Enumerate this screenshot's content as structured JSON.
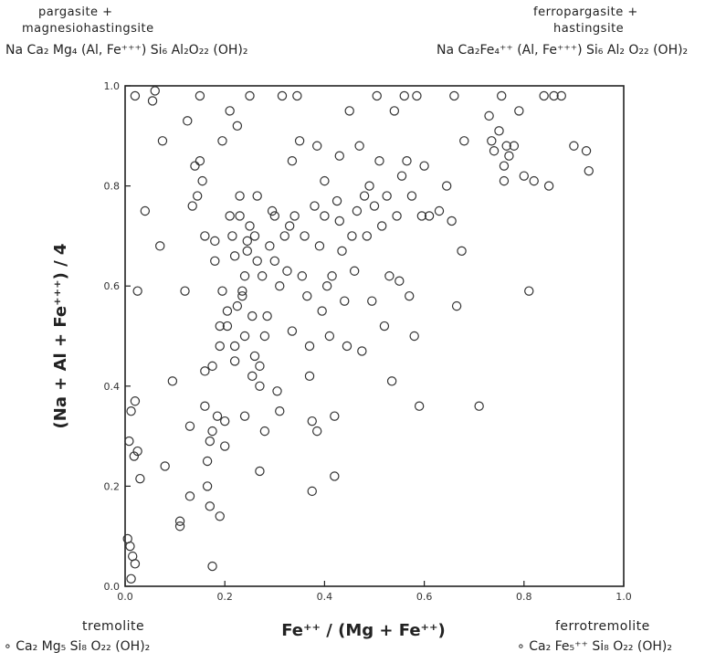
{
  "corner_labels": {
    "top_left": {
      "name_line1": "pargasite +",
      "name_line2": "magnesiohastingsite",
      "formula": "Na Ca₂ Mg₄ (Al, Fe⁺⁺⁺) Si₆ Al₂O₂₂ (OH)₂"
    },
    "top_right": {
      "name_line1": "ferropargasite +",
      "name_line2": "hastingsite",
      "formula": "Na Ca₂Fe₄⁺⁺ (Al, Fe⁺⁺⁺) Si₆ Al₂ O₂₂ (OH)₂"
    },
    "bottom_left": {
      "name": "tremolite",
      "formula": "∘ Ca₂ Mg₅ Si₈ O₂₂ (OH)₂"
    },
    "bottom_right": {
      "name": "ferrotremolite",
      "formula": "∘ Ca₂ Fe₅⁺⁺ Si₈ O₂₂ (OH)₂"
    }
  },
  "chart_data": {
    "type": "scatter",
    "xlabel": "Fe⁺⁺ / (Mg + Fe⁺⁺)",
    "ylabel": "(Na + Al + Fe⁺⁺⁺) / 4",
    "xlim": [
      0.0,
      1.0
    ],
    "ylim": [
      0.0,
      1.0
    ],
    "x_ticks": [
      "0.0",
      "0.2",
      "0.4",
      "0.6",
      "0.8",
      "1.0"
    ],
    "y_ticks": [
      "0.0",
      "0.2",
      "0.4",
      "0.6",
      "0.8",
      "1.0"
    ],
    "grid": false,
    "marker": "open-circle",
    "points": [
      [
        0.005,
        0.095
      ],
      [
        0.01,
        0.08
      ],
      [
        0.015,
        0.06
      ],
      [
        0.02,
        0.045
      ],
      [
        0.012,
        0.015
      ],
      [
        0.008,
        0.29
      ],
      [
        0.012,
        0.35
      ],
      [
        0.02,
        0.37
      ],
      [
        0.025,
        0.27
      ],
      [
        0.018,
        0.26
      ],
      [
        0.03,
        0.215
      ],
      [
        0.025,
        0.59
      ],
      [
        0.02,
        0.98
      ],
      [
        0.04,
        0.75
      ],
      [
        0.055,
        0.97
      ],
      [
        0.06,
        0.99
      ],
      [
        0.07,
        0.68
      ],
      [
        0.075,
        0.89
      ],
      [
        0.08,
        0.24
      ],
      [
        0.095,
        0.41
      ],
      [
        0.11,
        0.13
      ],
      [
        0.11,
        0.12
      ],
      [
        0.12,
        0.59
      ],
      [
        0.125,
        0.93
      ],
      [
        0.13,
        0.18
      ],
      [
        0.13,
        0.32
      ],
      [
        0.135,
        0.76
      ],
      [
        0.14,
        0.84
      ],
      [
        0.145,
        0.78
      ],
      [
        0.15,
        0.85
      ],
      [
        0.15,
        0.98
      ],
      [
        0.155,
        0.81
      ],
      [
        0.16,
        0.43
      ],
      [
        0.16,
        0.36
      ],
      [
        0.16,
        0.7
      ],
      [
        0.165,
        0.25
      ],
      [
        0.165,
        0.2
      ],
      [
        0.17,
        0.16
      ],
      [
        0.17,
        0.29
      ],
      [
        0.175,
        0.04
      ],
      [
        0.175,
        0.31
      ],
      [
        0.175,
        0.44
      ],
      [
        0.18,
        0.69
      ],
      [
        0.18,
        0.65
      ],
      [
        0.185,
        0.34
      ],
      [
        0.19,
        0.48
      ],
      [
        0.19,
        0.52
      ],
      [
        0.19,
        0.14
      ],
      [
        0.195,
        0.59
      ],
      [
        0.195,
        0.89
      ],
      [
        0.2,
        0.28
      ],
      [
        0.2,
        0.33
      ],
      [
        0.205,
        0.52
      ],
      [
        0.205,
        0.55
      ],
      [
        0.21,
        0.74
      ],
      [
        0.21,
        0.95
      ],
      [
        0.215,
        0.7
      ],
      [
        0.22,
        0.45
      ],
      [
        0.22,
        0.48
      ],
      [
        0.22,
        0.66
      ],
      [
        0.225,
        0.56
      ],
      [
        0.225,
        0.92
      ],
      [
        0.23,
        0.78
      ],
      [
        0.23,
        0.74
      ],
      [
        0.235,
        0.58
      ],
      [
        0.235,
        0.59
      ],
      [
        0.24,
        0.34
      ],
      [
        0.24,
        0.5
      ],
      [
        0.24,
        0.62
      ],
      [
        0.245,
        0.67
      ],
      [
        0.245,
        0.69
      ],
      [
        0.25,
        0.72
      ],
      [
        0.25,
        0.98
      ],
      [
        0.255,
        0.42
      ],
      [
        0.255,
        0.54
      ],
      [
        0.26,
        0.46
      ],
      [
        0.26,
        0.7
      ],
      [
        0.265,
        0.65
      ],
      [
        0.265,
        0.78
      ],
      [
        0.27,
        0.4
      ],
      [
        0.27,
        0.44
      ],
      [
        0.27,
        0.23
      ],
      [
        0.275,
        0.62
      ],
      [
        0.28,
        0.31
      ],
      [
        0.28,
        0.5
      ],
      [
        0.285,
        0.54
      ],
      [
        0.29,
        0.68
      ],
      [
        0.295,
        0.75
      ],
      [
        0.3,
        0.65
      ],
      [
        0.3,
        0.74
      ],
      [
        0.305,
        0.39
      ],
      [
        0.31,
        0.35
      ],
      [
        0.31,
        0.6
      ],
      [
        0.315,
        0.98
      ],
      [
        0.32,
        0.7
      ],
      [
        0.325,
        0.63
      ],
      [
        0.33,
        0.72
      ],
      [
        0.335,
        0.51
      ],
      [
        0.335,
        0.85
      ],
      [
        0.34,
        0.74
      ],
      [
        0.345,
        0.98
      ],
      [
        0.35,
        0.89
      ],
      [
        0.355,
        0.62
      ],
      [
        0.36,
        0.7
      ],
      [
        0.365,
        0.58
      ],
      [
        0.37,
        0.42
      ],
      [
        0.37,
        0.48
      ],
      [
        0.375,
        0.19
      ],
      [
        0.375,
        0.33
      ],
      [
        0.38,
        0.76
      ],
      [
        0.385,
        0.31
      ],
      [
        0.385,
        0.88
      ],
      [
        0.39,
        0.68
      ],
      [
        0.395,
        0.55
      ],
      [
        0.4,
        0.74
      ],
      [
        0.4,
        0.81
      ],
      [
        0.405,
        0.6
      ],
      [
        0.41,
        0.5
      ],
      [
        0.415,
        0.62
      ],
      [
        0.42,
        0.22
      ],
      [
        0.42,
        0.34
      ],
      [
        0.425,
        0.77
      ],
      [
        0.43,
        0.73
      ],
      [
        0.43,
        0.86
      ],
      [
        0.435,
        0.67
      ],
      [
        0.44,
        0.57
      ],
      [
        0.445,
        0.48
      ],
      [
        0.45,
        0.95
      ],
      [
        0.455,
        0.7
      ],
      [
        0.46,
        0.63
      ],
      [
        0.465,
        0.75
      ],
      [
        0.47,
        0.88
      ],
      [
        0.475,
        0.47
      ],
      [
        0.48,
        0.78
      ],
      [
        0.485,
        0.7
      ],
      [
        0.49,
        0.8
      ],
      [
        0.495,
        0.57
      ],
      [
        0.5,
        0.76
      ],
      [
        0.505,
        0.98
      ],
      [
        0.51,
        0.85
      ],
      [
        0.515,
        0.72
      ],
      [
        0.52,
        0.52
      ],
      [
        0.525,
        0.78
      ],
      [
        0.53,
        0.62
      ],
      [
        0.535,
        0.41
      ],
      [
        0.54,
        0.95
      ],
      [
        0.545,
        0.74
      ],
      [
        0.55,
        0.61
      ],
      [
        0.555,
        0.82
      ],
      [
        0.56,
        0.98
      ],
      [
        0.565,
        0.85
      ],
      [
        0.57,
        0.58
      ],
      [
        0.575,
        0.78
      ],
      [
        0.58,
        0.5
      ],
      [
        0.585,
        0.98
      ],
      [
        0.59,
        0.36
      ],
      [
        0.595,
        0.74
      ],
      [
        0.6,
        0.84
      ],
      [
        0.61,
        0.74
      ],
      [
        0.63,
        0.75
      ],
      [
        0.645,
        0.8
      ],
      [
        0.655,
        0.73
      ],
      [
        0.66,
        0.98
      ],
      [
        0.665,
        0.56
      ],
      [
        0.675,
        0.67
      ],
      [
        0.68,
        0.89
      ],
      [
        0.71,
        0.36
      ],
      [
        0.73,
        0.94
      ],
      [
        0.735,
        0.89
      ],
      [
        0.74,
        0.87
      ],
      [
        0.75,
        0.91
      ],
      [
        0.755,
        0.98
      ],
      [
        0.76,
        0.81
      ],
      [
        0.76,
        0.84
      ],
      [
        0.765,
        0.88
      ],
      [
        0.77,
        0.86
      ],
      [
        0.78,
        0.88
      ],
      [
        0.79,
        0.95
      ],
      [
        0.8,
        0.82
      ],
      [
        0.81,
        0.59
      ],
      [
        0.82,
        0.81
      ],
      [
        0.84,
        0.98
      ],
      [
        0.85,
        0.8
      ],
      [
        0.86,
        0.98
      ],
      [
        0.875,
        0.98
      ],
      [
        0.9,
        0.88
      ],
      [
        0.925,
        0.87
      ],
      [
        0.93,
        0.83
      ]
    ]
  }
}
